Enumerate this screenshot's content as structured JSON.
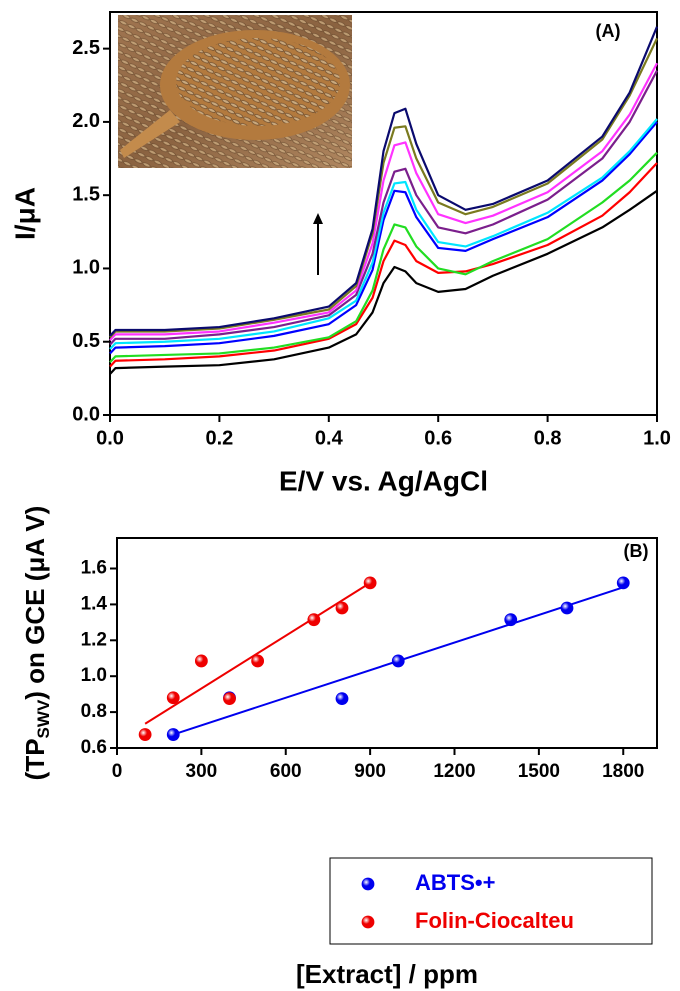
{
  "chart_data": [
    {
      "type": "line",
      "annotation": "(A)",
      "xlabel": "E/V vs. Ag/AgCl",
      "ylabel": "I/μA",
      "x": [
        0,
        0.01,
        0.1,
        0.2,
        0.3,
        0.4,
        0.45,
        0.48,
        0.5,
        0.52,
        0.54,
        0.56,
        0.6,
        0.65,
        0.7,
        0.8,
        0.9,
        0.95,
        1.0
      ],
      "xlim": [
        0,
        1
      ],
      "ylim": [
        0,
        2.75
      ],
      "xticks": [
        {
          "value": 0,
          "label": "0.0"
        },
        0.2,
        0.4,
        0.6,
        0.8,
        {
          "value": 1,
          "label": "1.0"
        }
      ],
      "yticks": [
        {
          "value": 0,
          "label": "0.0"
        },
        0.5,
        {
          "value": 1,
          "label": "1.0"
        },
        1.5,
        {
          "value": 2,
          "label": "2.0"
        },
        2.5
      ],
      "series": [
        {
          "color": "#000000",
          "values": [
            0.28,
            0.32,
            0.33,
            0.34,
            0.38,
            0.46,
            0.55,
            0.7,
            0.9,
            1.01,
            0.98,
            0.9,
            0.84,
            0.86,
            0.95,
            1.1,
            1.28,
            1.4,
            1.53
          ]
        },
        {
          "color": "#ff0000",
          "values": [
            0.33,
            0.37,
            0.38,
            0.4,
            0.44,
            0.52,
            0.62,
            0.8,
            1.05,
            1.19,
            1.16,
            1.05,
            0.97,
            0.98,
            1.03,
            1.16,
            1.36,
            1.52,
            1.72
          ]
        },
        {
          "color": "#22dd22",
          "values": [
            0.36,
            0.4,
            0.41,
            0.42,
            0.46,
            0.53,
            0.64,
            0.85,
            1.13,
            1.3,
            1.28,
            1.15,
            1.0,
            0.96,
            1.05,
            1.2,
            1.45,
            1.6,
            1.79
          ]
        },
        {
          "color": "#0000ff",
          "values": [
            0.42,
            0.46,
            0.47,
            0.49,
            0.54,
            0.62,
            0.75,
            0.99,
            1.33,
            1.53,
            1.52,
            1.35,
            1.14,
            1.12,
            1.2,
            1.35,
            1.6,
            1.78,
            2.0
          ]
        },
        {
          "color": "#00e5ff",
          "values": [
            0.45,
            0.49,
            0.5,
            0.52,
            0.57,
            0.66,
            0.78,
            1.04,
            1.38,
            1.58,
            1.59,
            1.4,
            1.18,
            1.15,
            1.22,
            1.38,
            1.62,
            1.8,
            2.02
          ]
        },
        {
          "color": "#7b1f8c",
          "values": [
            0.48,
            0.52,
            0.52,
            0.55,
            0.6,
            0.68,
            0.82,
            1.1,
            1.45,
            1.66,
            1.68,
            1.5,
            1.28,
            1.24,
            1.3,
            1.47,
            1.75,
            2.0,
            2.35
          ]
        },
        {
          "color": "#ff33ff",
          "values": [
            0.51,
            0.55,
            0.55,
            0.57,
            0.63,
            0.7,
            0.85,
            1.17,
            1.6,
            1.84,
            1.86,
            1.65,
            1.37,
            1.31,
            1.36,
            1.52,
            1.8,
            2.05,
            2.4
          ]
        },
        {
          "color": "#7a7a1f",
          "values": [
            0.53,
            0.57,
            0.57,
            0.59,
            0.65,
            0.72,
            0.88,
            1.24,
            1.72,
            1.96,
            1.97,
            1.75,
            1.45,
            1.37,
            1.42,
            1.58,
            1.88,
            2.18,
            2.57
          ]
        },
        {
          "color": "#0a0a6e",
          "values": [
            0.54,
            0.58,
            0.58,
            0.6,
            0.66,
            0.74,
            0.9,
            1.27,
            1.8,
            2.06,
            2.09,
            1.85,
            1.5,
            1.4,
            1.44,
            1.6,
            1.9,
            2.2,
            2.65
          ]
        }
      ]
    },
    {
      "type": "scatter",
      "annotation": "(B)",
      "xlabel": "[Extract] / ppm",
      "ylabel_parts": [
        "(TP",
        "SWV",
        ") on GCE (μA V)"
      ],
      "xlim": [
        0,
        1920
      ],
      "ylim": [
        0.6,
        1.77
      ],
      "xticks": [
        0,
        300,
        600,
        900,
        1200,
        1500,
        1800
      ],
      "yticks": [
        0.6,
        0.8,
        {
          "value": 1,
          "label": "1.0"
        },
        1.2,
        1.4,
        1.6
      ],
      "legend": "lower right",
      "series": [
        {
          "name": "ABTS•+",
          "color": "#0000ee",
          "x": [
            200,
            400,
            800,
            1000,
            1400,
            1600,
            1800
          ],
          "values": [
            0.675,
            0.88,
            0.875,
            1.085,
            1.315,
            1.38,
            1.52
          ],
          "fit": {
            "x": [
              200,
              1800
            ],
            "values": [
              0.675,
              1.495
            ]
          }
        },
        {
          "name": "Folin-Ciocalteu",
          "color": "#ee0000",
          "x": [
            100,
            200,
            300,
            400,
            500,
            700,
            800,
            900
          ],
          "values": [
            0.675,
            0.88,
            1.085,
            0.875,
            1.085,
            1.315,
            1.38,
            1.52
          ],
          "fit": {
            "x": [
              100,
              900
            ],
            "values": [
              0.735,
              1.52
            ]
          }
        }
      ]
    }
  ]
}
